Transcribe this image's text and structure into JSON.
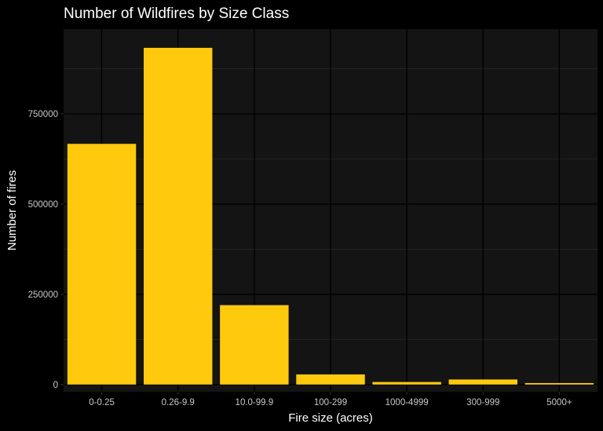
{
  "chart_data": {
    "type": "bar",
    "title": "Number of Wildfires by Size Class",
    "xlabel": "Fire size (acres)",
    "ylabel": "Number of fires",
    "categories": [
      "0-0.25",
      "0.26-9.9",
      "10.0-99.9",
      "100-299",
      "1000-4999",
      "300-999",
      "5000+"
    ],
    "values": [
      666900,
      933000,
      220000,
      28000,
      7000,
      14000,
      4000
    ],
    "yticks": [
      0,
      250000,
      500000,
      750000
    ],
    "ytick_labels": [
      "0",
      "250000",
      "500000",
      "750000"
    ],
    "ylim": [
      -20000,
      985000
    ],
    "grid": true,
    "legend": "none",
    "colors": {
      "bar": "#FFC90E",
      "panel": "#141414",
      "background": "#000000",
      "grid_major": "#000000",
      "grid_minor": "#262626"
    }
  }
}
